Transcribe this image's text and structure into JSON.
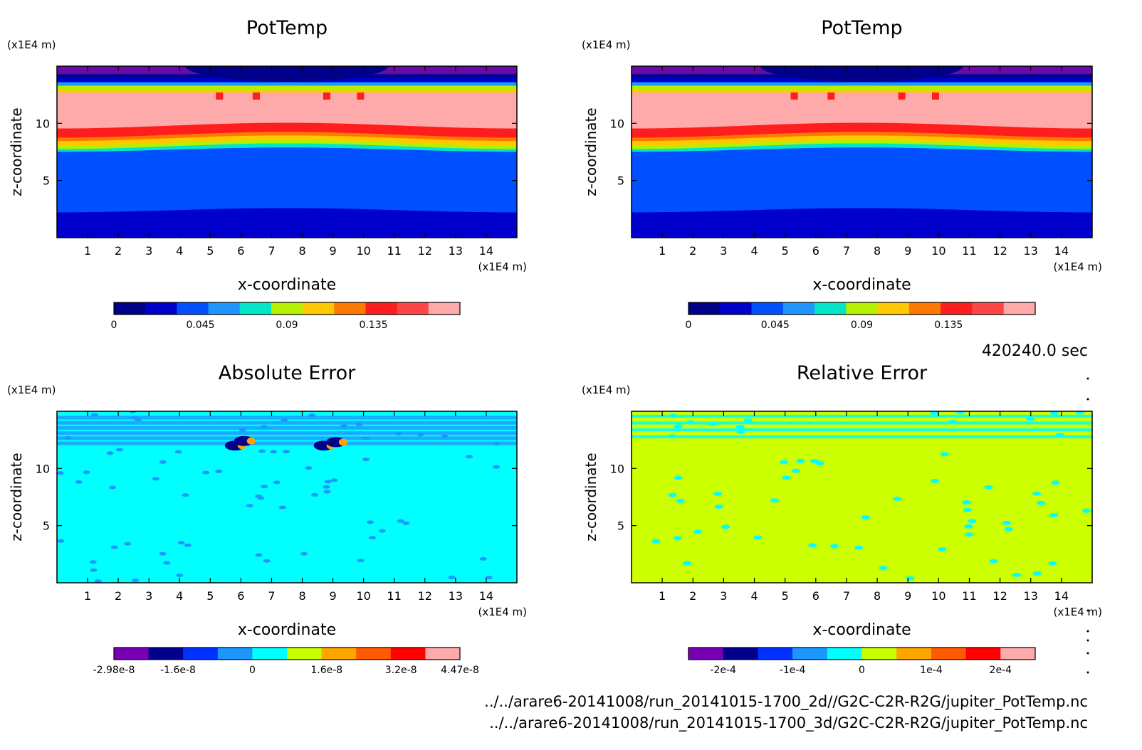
{
  "timestamp": "420240.0 sec",
  "files": [
    "../../arare6-20141008/run_20141015-1700_2d//G2C-C2R-R2G/jupiter_PotTemp.nc",
    "../../arare6-20141008/run_20141015-1700_3d/G2C-C2R-R2G/jupiter_PotTemp.nc"
  ],
  "colors": {
    "potemp_colorbar": [
      "#00008b",
      "#0000cd",
      "#0050ff",
      "#1e96ff",
      "#00e6c8",
      "#b4f000",
      "#ffc800",
      "#ff7800",
      "#ff1e1e",
      "#ff4646",
      "#ffaaaa"
    ],
    "diverging_colorbar": [
      "#7800b4",
      "#00008b",
      "#0032ff",
      "#1e96ff",
      "#00ffff",
      "#c8ff00",
      "#ffa500",
      "#ff5a00",
      "#ff0000",
      "#ffaaaa"
    ],
    "top_band": "#6a0aa8",
    "cyan": "#00ffff",
    "lime": "#ccff00"
  },
  "chart_data": [
    {
      "type": "heatmap",
      "title": "PotTemp",
      "xlabel": "x-coordinate",
      "ylabel": "z-coordinate",
      "x_unit": "(x1E4 m)",
      "y_unit": "(x1E4 m)",
      "x_ticks": [
        "1",
        "2",
        "3",
        "4",
        "5",
        "6",
        "7",
        "8",
        "9",
        "10",
        "11",
        "12",
        "13",
        "14"
      ],
      "y_ticks": [
        "5",
        "10"
      ],
      "xlim": [
        0,
        15
      ],
      "ylim": [
        0,
        15
      ],
      "colorbar_ticks": [
        "0",
        "0.045",
        "0.09",
        "0.135"
      ],
      "colorbar_range": [
        0,
        0.18
      ],
      "field": "stratified potential temperature: deep blue near surface, blue up to ~7.5, transition bands ~7.5-9.5, red ~9.5-11, pink ~11-13, bright bands ~13-14, violet cap above 14"
    },
    {
      "type": "heatmap",
      "title": "PotTemp",
      "xlabel": "x-coordinate",
      "ylabel": "z-coordinate",
      "x_unit": "(x1E4 m)",
      "y_unit": "(x1E4 m)",
      "x_ticks": [
        "1",
        "2",
        "3",
        "4",
        "5",
        "6",
        "7",
        "8",
        "9",
        "10",
        "11",
        "12",
        "13",
        "14"
      ],
      "y_ticks": [
        "5",
        "10"
      ],
      "xlim": [
        0,
        15
      ],
      "ylim": [
        0,
        15
      ],
      "colorbar_ticks": [
        "0",
        "0.045",
        "0.09",
        "0.135"
      ],
      "colorbar_range": [
        0,
        0.18
      ]
    },
    {
      "type": "heatmap",
      "title": "Absolute Error",
      "xlabel": "x-coordinate",
      "ylabel": "z-coordinate",
      "x_unit": "(x1E4 m)",
      "y_unit": "(x1E4 m)",
      "x_ticks": [
        "1",
        "2",
        "3",
        "4",
        "5",
        "6",
        "7",
        "8",
        "9",
        "10",
        "11",
        "12",
        "13",
        "14"
      ],
      "y_ticks": [
        "5",
        "10"
      ],
      "xlim": [
        0,
        15
      ],
      "ylim": [
        0,
        15
      ],
      "colorbar_ticks": [
        "-2.98e-8",
        "-1.6e-8",
        "0",
        "1.6e-8",
        "3.2e-8",
        "4.47e-8"
      ],
      "colorbar_range": [
        -2.98e-08,
        4.47e-08
      ]
    },
    {
      "type": "heatmap",
      "title": "Relative Error",
      "xlabel": "x-coordinate",
      "ylabel": "z-coordinate",
      "x_unit": "(x1E4 m)",
      "y_unit": "(x1E4 m)",
      "x_ticks": [
        "1",
        "2",
        "3",
        "4",
        "5",
        "6",
        "7",
        "8",
        "9",
        "10",
        "11",
        "12",
        "13",
        "14"
      ],
      "y_ticks": [
        "5",
        "10"
      ],
      "xlim": [
        0,
        15
      ],
      "ylim": [
        0,
        15
      ],
      "colorbar_ticks": [
        "-2e-4",
        "-1e-4",
        "0",
        "1e-4",
        "2e-4"
      ],
      "colorbar_range": [
        -0.00025,
        0.00025
      ]
    }
  ]
}
